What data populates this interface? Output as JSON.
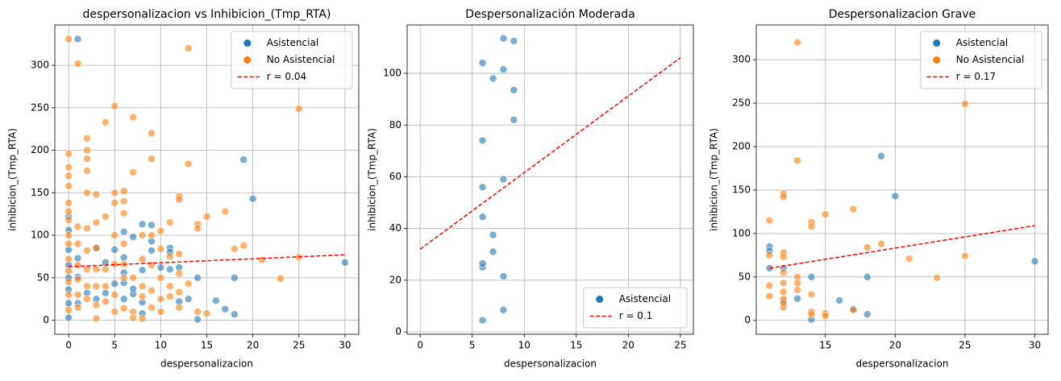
{
  "chart_data": [
    {
      "type": "scatter",
      "title": "despersonalizacion vs Inhibicion_(Tmp_RTA)",
      "x_label": "despersonalizacion",
      "y_label": "inhibicion_(Tmp_RTA)",
      "xlim": [
        -1.5,
        31.5
      ],
      "ylim": [
        -16.5,
        347.5
      ],
      "xticks": [
        0,
        5,
        10,
        15,
        20,
        25,
        30
      ],
      "yticks": [
        0,
        50,
        100,
        150,
        200,
        250,
        300
      ],
      "grid": true,
      "legend": "upper right",
      "series": [
        {
          "name": "Asistencial",
          "color": "#1f77b4",
          "x": [
            1,
            19,
            20,
            30,
            8,
            9,
            9,
            6,
            6,
            6,
            6,
            6,
            7,
            7,
            7,
            8,
            8,
            8,
            9,
            11,
            11,
            11,
            12,
            13,
            14,
            14,
            16,
            18,
            18,
            0,
            0,
            0,
            0,
            0,
            0,
            0,
            0,
            1,
            1,
            1,
            2,
            3,
            4,
            5,
            5,
            10,
            12,
            17,
            3,
            4
          ],
          "values": [
            331,
            189,
            143,
            68,
            113,
            93,
            82,
            104,
            74,
            56,
            44,
            25,
            98,
            31,
            37,
            59,
            21,
            8,
            112,
            85,
            80,
            60,
            22,
            25,
            50,
            1,
            23,
            50,
            7,
            122,
            106,
            83,
            65,
            50,
            36,
            20,
            3,
            73,
            51,
            20,
            32,
            25,
            68,
            83,
            43,
            62,
            62,
            13,
            85,
            32
          ]
        },
        {
          "name": "No Asistencial",
          "color": "#ff7f0e",
          "x": [
            0,
            0,
            0,
            0,
            0,
            0,
            0,
            0,
            0,
            0,
            0,
            0,
            0,
            0,
            0,
            1,
            1,
            1,
            1,
            1,
            1,
            1,
            2,
            2,
            2,
            2,
            2,
            2,
            2,
            2,
            2,
            2,
            3,
            3,
            3,
            3,
            3,
            3,
            3,
            4,
            4,
            4,
            4,
            4,
            5,
            5,
            5,
            5,
            5,
            5,
            5,
            6,
            6,
            6,
            6,
            6,
            6,
            6,
            7,
            7,
            7,
            7,
            7,
            8,
            8,
            8,
            8,
            8,
            9,
            9,
            9,
            9,
            9,
            9,
            10,
            10,
            10,
            10,
            10,
            11,
            11,
            11,
            11,
            12,
            12,
            12,
            12,
            12,
            12,
            13,
            13,
            13,
            14,
            14,
            14,
            15,
            15,
            17,
            18,
            19,
            21,
            23,
            25,
            25
          ],
          "values": [
            331,
            196,
            180,
            170,
            158,
            138,
            128,
            118,
            100,
            90,
            72,
            58,
            45,
            30,
            12,
            302,
            110,
            90,
            65,
            48,
            30,
            15,
            214,
            200,
            190,
            176,
            150,
            108,
            82,
            60,
            40,
            25,
            148,
            115,
            85,
            60,
            40,
            18,
            2,
            233,
            122,
            60,
            40,
            22,
            252,
            150,
            138,
            100,
            66,
            30,
            10,
            152,
            140,
            126,
            90,
            66,
            50,
            14,
            239,
            174,
            50,
            10,
            3,
            100,
            72,
            40,
            28,
            2,
            220,
            190,
            100,
            65,
            35,
            15,
            105,
            84,
            50,
            25,
            10,
            115,
            75,
            40,
            28,
            146,
            142,
            78,
            55,
            33,
            15,
            320,
            184,
            43,
            113,
            108,
            10,
            122,
            8,
            128,
            84,
            88,
            71,
            49,
            249,
            74
          ]
        },
        {
          "name": "r = 0.04",
          "type": "line",
          "color": "#ff0000",
          "x": [
            0,
            30
          ],
          "values": [
            63,
            77
          ]
        }
      ]
    },
    {
      "type": "scatter",
      "title": "Despersonalización Moderada",
      "x_label": "despersonalizacion",
      "y_label": "inhibicion_(Tmp_RTA)",
      "xlim": [
        -1.25,
        26.25
      ],
      "ylim": [
        -0.9,
        118.7
      ],
      "xticks": [
        0,
        5,
        10,
        15,
        20,
        25
      ],
      "yticks": [
        0,
        20,
        40,
        60,
        80,
        100
      ],
      "grid": true,
      "legend": "lower right",
      "series": [
        {
          "name": "Asistencial",
          "color": "#1f77b4",
          "x": [
            6,
            6,
            6,
            6,
            6,
            6,
            6,
            7,
            7,
            7,
            8,
            8,
            8,
            8,
            8,
            9,
            9,
            9
          ],
          "values": [
            4.5,
            25,
            26.5,
            44.5,
            56,
            74,
            104,
            98,
            31,
            37.5,
            113.5,
            101.5,
            59,
            21.5,
            8.5,
            112.5,
            93.5,
            82
          ]
        },
        {
          "name": "r = 0.1",
          "type": "line",
          "color": "#ff0000",
          "x": [
            0,
            25
          ],
          "values": [
            32,
            106
          ]
        }
      ]
    },
    {
      "type": "scatter",
      "title": "Despersonalizacion Grave",
      "x_label": "despersonalizacion",
      "y_label": "inhibicion_(Tmp_RTA)",
      "xlim": [
        10.05,
        30.95
      ],
      "ylim": [
        -16,
        340
      ],
      "xticks": [
        15,
        20,
        25,
        30
      ],
      "yticks": [
        0,
        50,
        100,
        150,
        200,
        250,
        300
      ],
      "grid": true,
      "legend": "upper right",
      "series": [
        {
          "name": "Asistencial",
          "color": "#1f77b4",
          "x": [
            11,
            11,
            11,
            12,
            13,
            14,
            14,
            16,
            18,
            18,
            19,
            20,
            30,
            12,
            17
          ],
          "values": [
            85,
            80,
            60,
            22,
            25,
            50,
            1,
            23,
            50,
            7,
            189,
            143,
            68,
            60,
            13
          ]
        },
        {
          "name": "No Asistencial",
          "color": "#ff7f0e",
          "x": [
            11,
            11,
            11,
            11,
            12,
            12,
            12,
            12,
            12,
            12,
            12,
            12,
            12,
            13,
            13,
            13,
            13,
            13,
            14,
            14,
            14,
            14,
            14,
            15,
            15,
            15,
            17,
            17,
            18,
            19,
            21,
            23,
            25,
            25,
            12
          ],
          "values": [
            115,
            75,
            40,
            28,
            146,
            142,
            78,
            73,
            55,
            43,
            33,
            25,
            15,
            320,
            184,
            50,
            43,
            35,
            113,
            108,
            30,
            10,
            7,
            122,
            8,
            5,
            128,
            12,
            84,
            88,
            71,
            49,
            249,
            74,
            20
          ]
        },
        {
          "name": "r = 0.17",
          "type": "line",
          "color": "#ff0000",
          "x": [
            11,
            30
          ],
          "values": [
            60,
            109
          ]
        }
      ]
    }
  ]
}
